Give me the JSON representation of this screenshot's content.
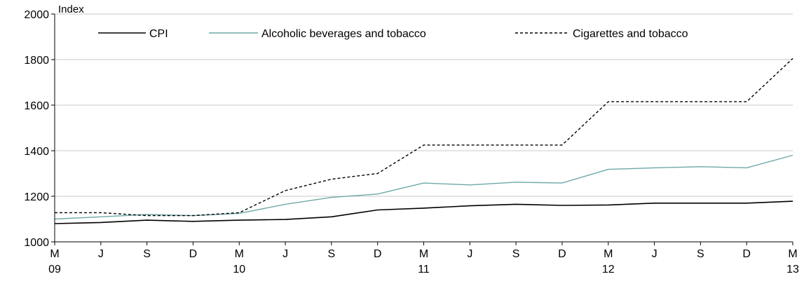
{
  "chart_data": {
    "type": "line",
    "title": "",
    "ylabel": "Index",
    "xlabel": "",
    "ylim": [
      1000,
      2000
    ],
    "yticks": [
      1000,
      1200,
      1400,
      1600,
      1800,
      2000
    ],
    "grid": true,
    "legend_position": "top",
    "x_ticks": [
      {
        "top": "M",
        "bottom": "09"
      },
      {
        "top": "J",
        "bottom": ""
      },
      {
        "top": "S",
        "bottom": ""
      },
      {
        "top": "D",
        "bottom": ""
      },
      {
        "top": "M",
        "bottom": "10"
      },
      {
        "top": "J",
        "bottom": ""
      },
      {
        "top": "S",
        "bottom": ""
      },
      {
        "top": "D",
        "bottom": ""
      },
      {
        "top": "M",
        "bottom": "11"
      },
      {
        "top": "J",
        "bottom": ""
      },
      {
        "top": "S",
        "bottom": ""
      },
      {
        "top": "D",
        "bottom": ""
      },
      {
        "top": "M",
        "bottom": "12"
      },
      {
        "top": "J",
        "bottom": ""
      },
      {
        "top": "S",
        "bottom": ""
      },
      {
        "top": "D",
        "bottom": ""
      },
      {
        "top": "M",
        "bottom": "13"
      }
    ],
    "series": [
      {
        "name": "CPI",
        "color": "#000000",
        "style": "solid",
        "values": [
          1080,
          1085,
          1095,
          1090,
          1095,
          1098,
          1110,
          1140,
          1148,
          1158,
          1165,
          1160,
          1162,
          1170,
          1170,
          1170,
          1178
        ]
      },
      {
        "name": "Alcoholic beverages and tobacco",
        "color": "#6ea9a8",
        "style": "solid",
        "values": [
          1100,
          1110,
          1120,
          1115,
          1125,
          1165,
          1195,
          1210,
          1258,
          1250,
          1262,
          1258,
          1318,
          1325,
          1330,
          1325,
          1380
        ]
      },
      {
        "name": "Cigarettes and tobacco",
        "color": "#000000",
        "style": "dashed",
        "values": [
          1128,
          1128,
          1115,
          1115,
          1128,
          1225,
          1275,
          1300,
          1425,
          1425,
          1425,
          1425,
          1615,
          1615,
          1615,
          1615,
          1805
        ]
      }
    ]
  }
}
